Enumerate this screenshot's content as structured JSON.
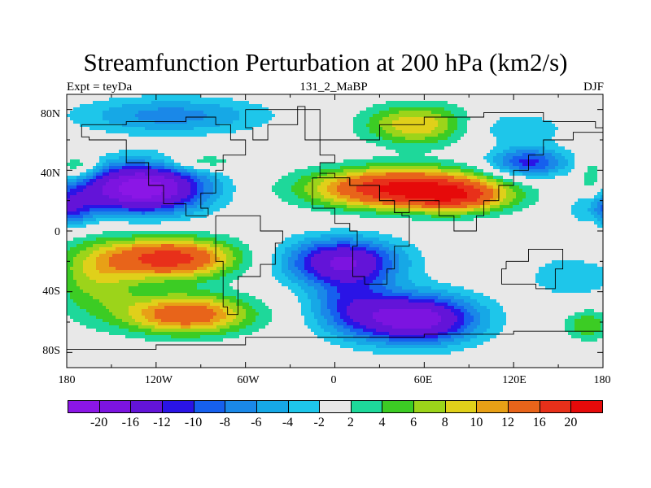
{
  "chart_data": {
    "type": "heatmap",
    "title": "Streamfunction Perturbation at 200 hPa (km2/s)",
    "subtitle_left": "Expt = teyDa",
    "subtitle_center": "131_2_MaBP",
    "subtitle_right": "DJF",
    "x_ticks": [
      "180",
      "120W",
      "60W",
      "0",
      "60E",
      "120E",
      "180"
    ],
    "x_tick_values": [
      -180,
      -120,
      -60,
      0,
      60,
      120,
      180
    ],
    "y_ticks": [
      "80N",
      "40N",
      "0",
      "40S",
      "80S"
    ],
    "y_tick_values": [
      80,
      40,
      0,
      -40,
      -80
    ],
    "xlim": [
      -180,
      180
    ],
    "ylim": [
      -90,
      90
    ],
    "colorbar": {
      "labels": [
        "-20",
        "-16",
        "-12",
        "-10",
        "-8",
        "-6",
        "-4",
        "-2",
        "2",
        "4",
        "6",
        "8",
        "10",
        "12",
        "16",
        "20"
      ],
      "levels": [
        -20,
        -16,
        -12,
        -10,
        -8,
        -6,
        -4,
        -2,
        2,
        4,
        6,
        8,
        10,
        12,
        16,
        20
      ],
      "colors": [
        "#8b16e6",
        "#7c14e0",
        "#6314d8",
        "#2a14e6",
        "#1660ee",
        "#1a88e8",
        "#16a8e6",
        "#1ec6ea",
        "#e8e8e8",
        "#1ed89a",
        "#3ccc24",
        "#9cd41a",
        "#e0d01a",
        "#e8a016",
        "#e8641a",
        "#e8301a",
        "#e60a0a"
      ]
    },
    "anomalies": [
      {
        "lon": -130,
        "lat": 28,
        "value": -23,
        "lon_radius": 42,
        "lat_radius": 16
      },
      {
        "lon": 45,
        "lat": 28,
        "value": 21,
        "lon_radius": 58,
        "lat_radius": 13
      },
      {
        "lon": 85,
        "lat": 22,
        "value": 10,
        "lon_radius": 32,
        "lat_radius": 10
      },
      {
        "lon": -110,
        "lat": -18,
        "value": 18,
        "lon_radius": 42,
        "lat_radius": 13
      },
      {
        "lon": -100,
        "lat": -55,
        "value": 15,
        "lon_radius": 42,
        "lat_radius": 13
      },
      {
        "lon": -160,
        "lat": -30,
        "value": 7,
        "lon_radius": 30,
        "lat_radius": 25
      },
      {
        "lon": 5,
        "lat": -20,
        "value": -16,
        "lon_radius": 38,
        "lat_radius": 15
      },
      {
        "lon": 55,
        "lat": -58,
        "value": -19,
        "lon_radius": 40,
        "lat_radius": 16
      },
      {
        "lon": 10,
        "lat": -48,
        "value": -8,
        "lon_radius": 28,
        "lat_radius": 20
      },
      {
        "lon": -110,
        "lat": 76,
        "value": -7,
        "lon_radius": 62,
        "lat_radius": 12
      },
      {
        "lon": 55,
        "lat": 70,
        "value": 10,
        "lon_radius": 35,
        "lat_radius": 13
      },
      {
        "lon": 130,
        "lat": 45,
        "value": -11,
        "lon_radius": 26,
        "lat_radius": 10
      },
      {
        "lon": 120,
        "lat": 68,
        "value": -4,
        "lon_radius": 35,
        "lat_radius": 10
      },
      {
        "lon": -90,
        "lat": 45,
        "value": 5,
        "lon_radius": 24,
        "lat_radius": 6
      },
      {
        "lon": -172,
        "lat": 42,
        "value": 6,
        "lon_radius": 14,
        "lat_radius": 8
      },
      {
        "lon": 180,
        "lat": 15,
        "value": -10,
        "lon_radius": 18,
        "lat_radius": 12
      },
      {
        "lon": -180,
        "lat": 15,
        "value": -10,
        "lon_radius": 18,
        "lat_radius": 12
      },
      {
        "lon": 160,
        "lat": -30,
        "value": -4,
        "lon_radius": 30,
        "lat_radius": 14
      },
      {
        "lon": 170,
        "lat": -62,
        "value": 6,
        "lon_radius": 15,
        "lat_radius": 10
      },
      {
        "lon": 172,
        "lat": 25,
        "value": 4,
        "lon_radius": 8,
        "lat_radius": 30
      }
    ]
  }
}
